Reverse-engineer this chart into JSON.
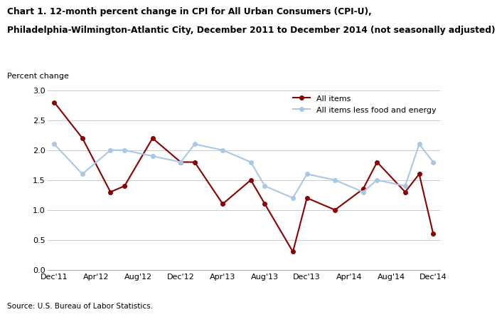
{
  "title_line1": "Chart 1. 12-month percent change in CPI for All Urban Consumers (CPI-U),",
  "title_line2": "Philadelphia-Wilmington-Atlantic City, December 2011 to December 2014 (not seasonally adjusted)",
  "ylabel": "Percent change",
  "source": "Source: U.S. Bureau of Labor Statistics.",
  "x_labels": [
    "Dec'11",
    "Apr'12",
    "Aug'12",
    "Dec'12",
    "Apr'13",
    "Aug'13",
    "Dec'13",
    "Apr'14",
    "Aug'14",
    "Dec'14"
  ],
  "x_tick_positions": [
    0,
    3,
    6,
    9,
    12,
    15,
    18,
    21,
    24,
    27
  ],
  "all_items": {
    "label": "All items",
    "color": "#8B0000",
    "marker": "o",
    "values": [
      2.8,
      2.2,
      1.3,
      1.4,
      2.2,
      1.8,
      1.8,
      1.1,
      1.5,
      1.1,
      0.3,
      1.2,
      1.0,
      1.35,
      1.8,
      1.3,
      1.6,
      0.6
    ],
    "x_positions": [
      0,
      2,
      4,
      5,
      7,
      9,
      10,
      12,
      14,
      15,
      17,
      18,
      20,
      22,
      23,
      25,
      26,
      27
    ]
  },
  "all_items_less": {
    "label": "All items less food and energy",
    "color": "#a8c8e8",
    "marker": "o",
    "values": [
      2.1,
      1.6,
      2.0,
      2.0,
      1.9,
      1.8,
      2.1,
      2.0,
      1.8,
      1.4,
      1.2,
      1.6,
      1.5,
      1.3,
      1.5,
      1.4,
      2.1,
      1.8
    ],
    "x_positions": [
      0,
      2,
      4,
      5,
      7,
      9,
      10,
      12,
      14,
      15,
      17,
      18,
      20,
      22,
      23,
      25,
      26,
      27
    ]
  },
  "ylim": [
    0.0,
    3.0
  ],
  "yticks": [
    0.0,
    0.5,
    1.0,
    1.5,
    2.0,
    2.5,
    3.0
  ],
  "background_color": "#ffffff",
  "grid_color": "#cccccc"
}
